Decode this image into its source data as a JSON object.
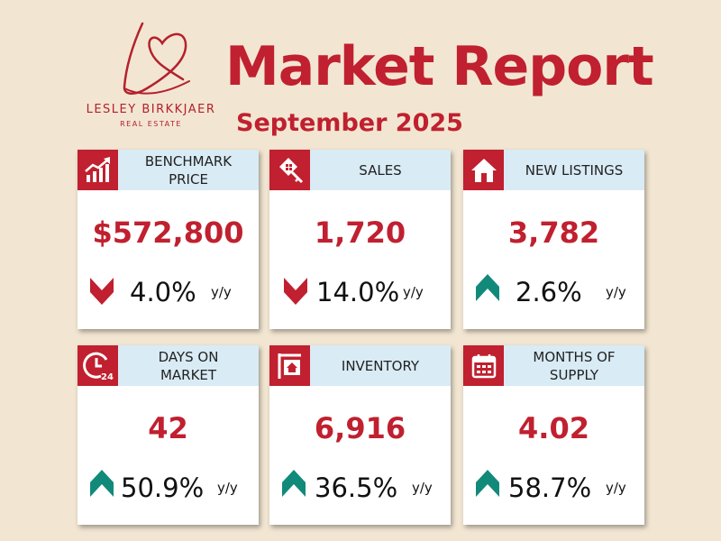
{
  "brand": {
    "name": "LESLEY BIRKKJAER",
    "tagline": "REAL ESTATE"
  },
  "header": {
    "title": "Market Report",
    "subtitle": "September 2025"
  },
  "colors": {
    "accent_red": "#c0202f",
    "header_blue": "#d9ebf5",
    "arrow_up": "#128a7a",
    "arrow_down": "#c0202f",
    "background": "#f2e6d2"
  },
  "cards": [
    {
      "label": "BENCHMARK\nPRICE",
      "icon": "chart-up-icon",
      "value": "$572,800",
      "direction": "down",
      "change": "4.0%",
      "unit": "y/y"
    },
    {
      "label": "SALES",
      "icon": "house-key-icon",
      "value": "1,720",
      "direction": "down",
      "change": "14.0%",
      "unit": "y/y"
    },
    {
      "label": "NEW LISTINGS",
      "icon": "house-icon",
      "value": "3,782",
      "direction": "up",
      "change": "2.6%",
      "unit": "y/y"
    },
    {
      "label": "DAYS ON\nMARKET",
      "icon": "clock-24-icon",
      "value": "42",
      "direction": "up",
      "change": "50.9%",
      "unit": "y/y"
    },
    {
      "label": "INVENTORY",
      "icon": "for-sale-sign-icon",
      "value": "6,916",
      "direction": "up",
      "change": "36.5%",
      "unit": "y/y"
    },
    {
      "label": "MONTHS OF\nSUPPLY",
      "icon": "calendar-icon",
      "value": "4.02",
      "direction": "up",
      "change": "58.7%",
      "unit": "y/y"
    }
  ]
}
